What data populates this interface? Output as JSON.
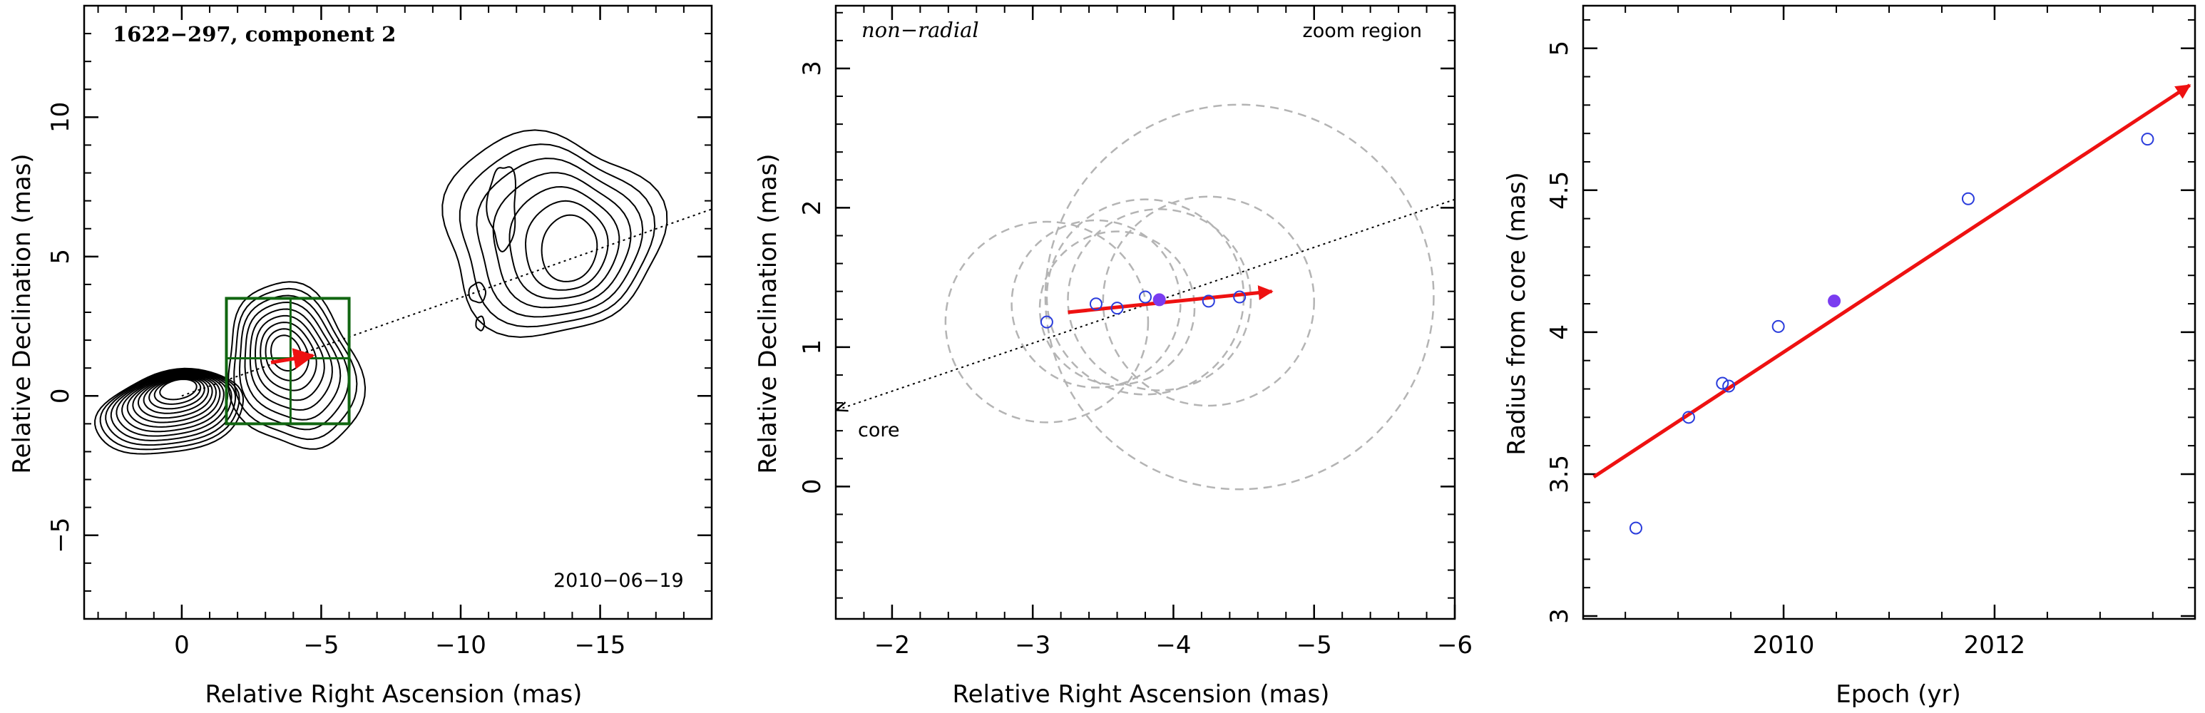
{
  "chart_data": [
    {
      "type": "contour",
      "title": "1622−297, component 2",
      "epoch_label": "2010−06−19",
      "xlabel": "Relative Right Ascension (mas)",
      "ylabel": "Relative Declination (mas)",
      "xlim": [
        3.5,
        -19
      ],
      "ylim": [
        -8,
        14
      ],
      "xticks": [
        0,
        -5,
        -10,
        -15
      ],
      "xtick_labels": [
        "0",
        "−5",
        "−10",
        "−15"
      ],
      "yticks": [
        -5,
        0,
        5,
        10
      ],
      "ytick_labels": [
        "−5",
        "0",
        "5",
        "10"
      ],
      "component_position": [
        -3.9,
        1.35
      ],
      "zoom_box": {
        "x": [
          -1.6,
          -6
        ],
        "y": [
          -1,
          3.5
        ]
      },
      "trajectory_line": {
        "from": [
          0,
          0
        ],
        "to": [
          -19,
          6.7
        ]
      },
      "motion_arrow": {
        "from": [
          -3.2,
          1.2
        ],
        "to": [
          -4.7,
          1.45
        ]
      }
    },
    {
      "type": "scatter",
      "label": "non−radial",
      "region_label": "zoom region",
      "core_label": "core",
      "xlabel": "Relative Right Ascension (mas)",
      "ylabel": "Relative Declination (mas)",
      "xlim": [
        -1.6,
        -6
      ],
      "ylim": [
        -0.95,
        3.45
      ],
      "xticks": [
        -2,
        -3,
        -4,
        -5,
        -6
      ],
      "xtick_labels": [
        "−2",
        "−3",
        "−4",
        "−5",
        "−6"
      ],
      "yticks": [
        0,
        1,
        2,
        3
      ],
      "ytick_labels": [
        "0",
        "1",
        "2",
        "3"
      ],
      "points": [
        {
          "x": -3.1,
          "y": 1.18,
          "filled": false
        },
        {
          "x": -3.45,
          "y": 1.31,
          "filled": false
        },
        {
          "x": -3.6,
          "y": 1.28,
          "filled": false
        },
        {
          "x": -3.8,
          "y": 1.36,
          "filled": false
        },
        {
          "x": -3.9,
          "y": 1.34,
          "filled": true
        },
        {
          "x": -4.25,
          "y": 1.33,
          "filled": false
        },
        {
          "x": -4.47,
          "y": 1.36,
          "filled": false
        }
      ],
      "uncertainty_circles": [
        {
          "x": -3.1,
          "y": 1.18,
          "r": 0.72
        },
        {
          "x": -3.45,
          "y": 1.31,
          "r": 0.6
        },
        {
          "x": -3.6,
          "y": 1.28,
          "r": 0.55
        },
        {
          "x": -3.8,
          "y": 1.36,
          "r": 0.7
        },
        {
          "x": -3.9,
          "y": 1.34,
          "r": 0.65
        },
        {
          "x": -4.25,
          "y": 1.33,
          "r": 0.75
        },
        {
          "x": -4.47,
          "y": 1.36,
          "r": 1.38
        }
      ],
      "trajectory_line": {
        "from": [
          -1.6,
          0.55
        ],
        "to": [
          -6,
          2.06
        ]
      },
      "motion_arrow": {
        "from": [
          -3.25,
          1.25
        ],
        "to": [
          -4.7,
          1.4
        ]
      }
    },
    {
      "type": "scatter",
      "xlabel": "Epoch (yr)",
      "ylabel": "Radius from core (mas)",
      "xlim": [
        2008.1,
        2013.9
      ],
      "ylim": [
        2.99,
        5.15
      ],
      "xticks": [
        2010,
        2012
      ],
      "xtick_labels": [
        "2010",
        "2012"
      ],
      "yticks": [
        3,
        3.5,
        4,
        4.5,
        5
      ],
      "ytick_labels": [
        "3",
        "3.5",
        "4",
        "4.5",
        "5"
      ],
      "points": [
        {
          "x": 2008.6,
          "y": 3.31,
          "filled": false
        },
        {
          "x": 2009.1,
          "y": 3.7,
          "filled": false
        },
        {
          "x": 2009.42,
          "y": 3.82,
          "filled": false
        },
        {
          "x": 2009.48,
          "y": 3.81,
          "filled": false
        },
        {
          "x": 2009.95,
          "y": 4.02,
          "filled": false
        },
        {
          "x": 2010.48,
          "y": 4.11,
          "filled": true
        },
        {
          "x": 2011.75,
          "y": 4.47,
          "filled": false
        },
        {
          "x": 2013.45,
          "y": 4.68,
          "filled": false
        }
      ],
      "fit_arrow": {
        "from": [
          2008.2,
          3.49
        ],
        "to": [
          2013.85,
          4.87
        ]
      }
    }
  ]
}
